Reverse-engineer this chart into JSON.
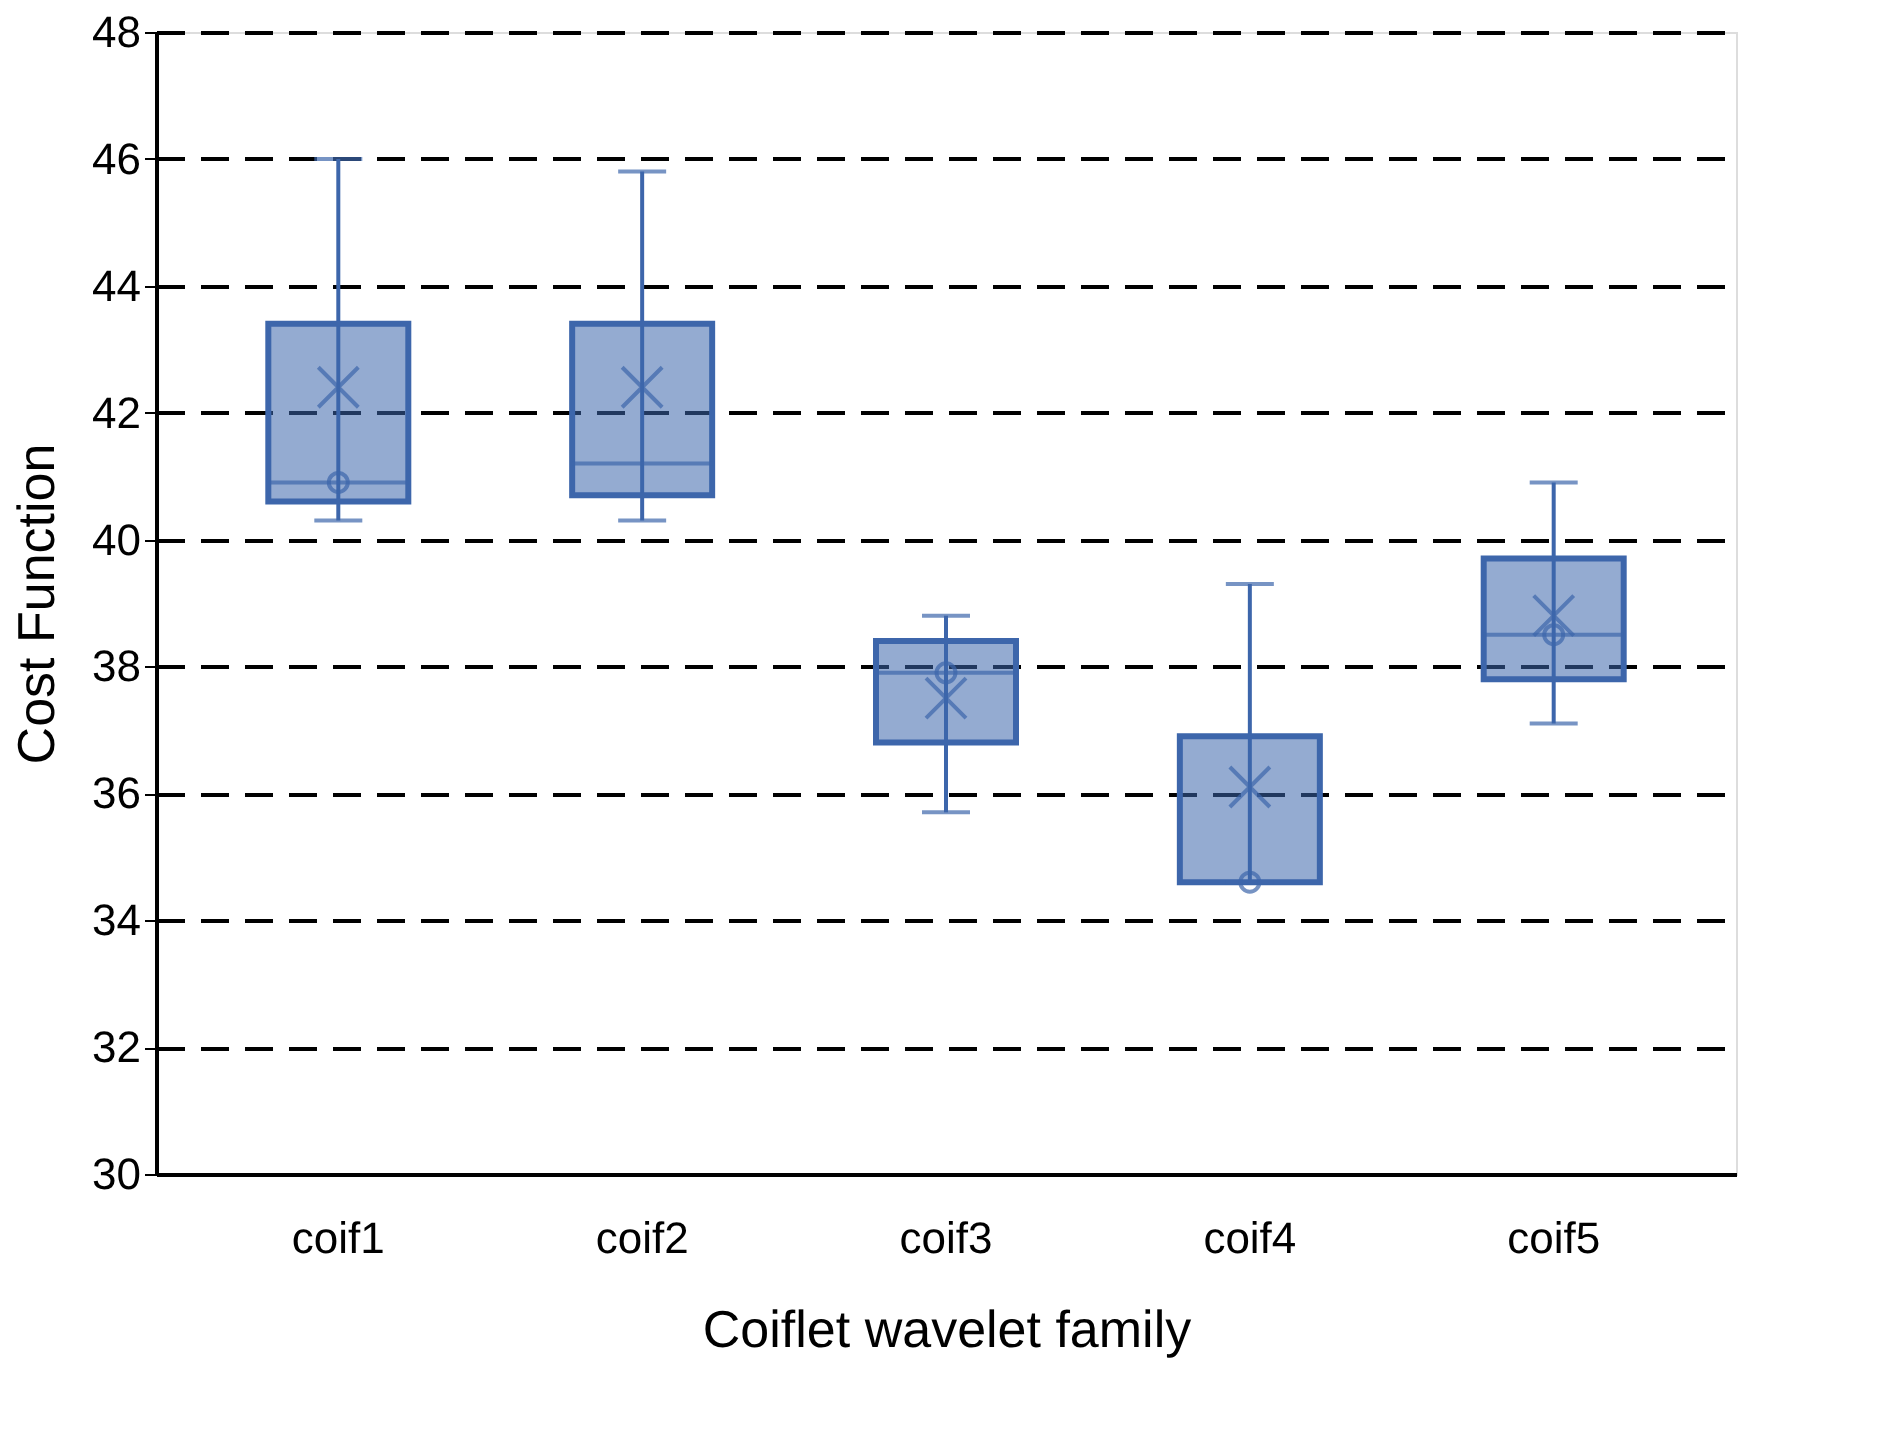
{
  "chart_data": {
    "type": "box",
    "xlabel": "Coiflet wavelet family",
    "ylabel": "Cost Function",
    "categories": [
      "coif1",
      "coif2",
      "coif3",
      "coif4",
      "coif5"
    ],
    "ylim": [
      30,
      48
    ],
    "yticks": [
      30,
      32,
      34,
      36,
      38,
      40,
      42,
      44,
      46,
      48
    ],
    "grid": "y",
    "series": [
      {
        "color": "#3d66ab",
        "boxes": [
          {
            "low": 40.3,
            "q1": 40.6,
            "median": 40.9,
            "q3": 43.4,
            "high": 46.0,
            "mean": 42.4,
            "outliers": [
              40.9
            ]
          },
          {
            "low": 40.3,
            "q1": 40.7,
            "median": 41.2,
            "q3": 43.4,
            "high": 45.8,
            "mean": 42.4
          },
          {
            "low": 35.7,
            "q1": 36.8,
            "median": 37.9,
            "q3": 38.4,
            "high": 38.8,
            "mean": 37.5,
            "outliers": [
              37.9
            ]
          },
          {
            "low": 34.6,
            "q1": 34.6,
            "median": 34.6,
            "q3": 36.9,
            "high": 39.3,
            "mean": 36.1,
            "outliers": [
              34.6
            ]
          },
          {
            "low": 37.1,
            "q1": 37.8,
            "median": 38.5,
            "q3": 39.7,
            "high": 40.9,
            "mean": 38.8,
            "outliers": [
              38.5
            ]
          }
        ]
      }
    ]
  }
}
